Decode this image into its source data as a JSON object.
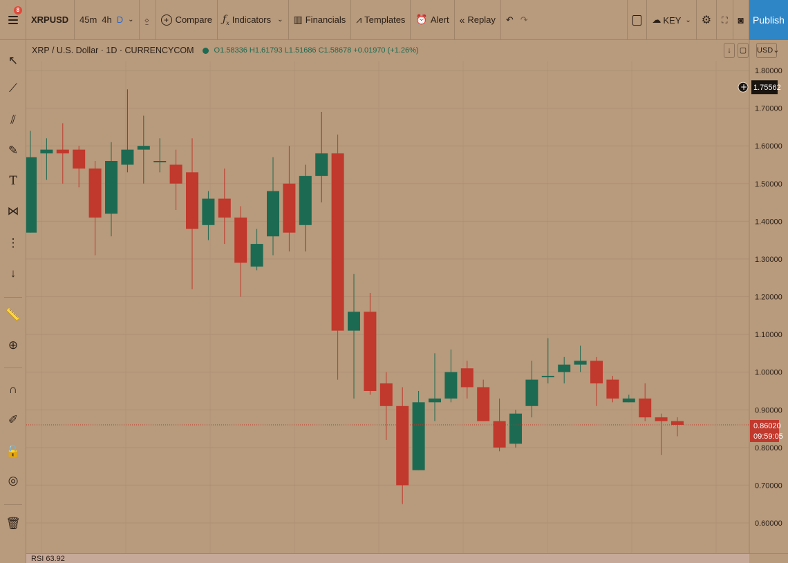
{
  "toolbar": {
    "notif_count": "8",
    "symbol": "XRPUSD",
    "intervals": [
      "45m",
      "4h",
      "D"
    ],
    "compare": "Compare",
    "indicators": "Indicators",
    "financials": "Financials",
    "templates": "Templates",
    "alert": "Alert",
    "replay": "Replay",
    "layout_name": "KEY",
    "publish": "Publish"
  },
  "legend": {
    "title": "XRP / U.S. Dollar · 1D · CURRENCYCOM",
    "ohlc": "O1.58336 H1.61793 L1.51686 C1.58678 +0.01970 (+1.26%)"
  },
  "currency": "USD",
  "rsi_label": "RSI  63.92",
  "colors": {
    "up": "#1d6a52",
    "down": "#c1382c",
    "background": "#b89a7c"
  },
  "chart_data": {
    "type": "candlestick",
    "ylim": [
      0.55,
      1.82
    ],
    "yticks": [
      "1.80000",
      "1.70000",
      "1.60000",
      "1.50000",
      "1.40000",
      "1.30000",
      "1.20000",
      "1.10000",
      "1.00000",
      "0.90000",
      "0.80000",
      "0.70000",
      "0.60000"
    ],
    "crosshair_price": "1.75562",
    "last_price": "0.86020",
    "countdown": "09:59:05",
    "candles": [
      {
        "o": 1.37,
        "h": 1.64,
        "l": 1.37,
        "c": 1.57
      },
      {
        "o": 1.58,
        "h": 1.62,
        "l": 1.51,
        "c": 1.59
      },
      {
        "o": 1.59,
        "h": 1.66,
        "l": 1.5,
        "c": 1.58
      },
      {
        "o": 1.59,
        "h": 1.6,
        "l": 1.49,
        "c": 1.54
      },
      {
        "o": 1.54,
        "h": 1.56,
        "l": 1.31,
        "c": 1.41
      },
      {
        "o": 1.42,
        "h": 1.61,
        "l": 1.36,
        "c": 1.56
      },
      {
        "o": 1.55,
        "h": 1.75,
        "l": 1.53,
        "c": 1.59
      },
      {
        "o": 1.59,
        "h": 1.68,
        "l": 1.5,
        "c": 1.6
      },
      {
        "o": 1.56,
        "h": 1.62,
        "l": 1.53,
        "c": 1.56
      },
      {
        "o": 1.55,
        "h": 1.59,
        "l": 1.43,
        "c": 1.5
      },
      {
        "o": 1.53,
        "h": 1.62,
        "l": 1.22,
        "c": 1.38
      },
      {
        "o": 1.39,
        "h": 1.48,
        "l": 1.35,
        "c": 1.46
      },
      {
        "o": 1.46,
        "h": 1.54,
        "l": 1.34,
        "c": 1.41
      },
      {
        "o": 1.41,
        "h": 1.44,
        "l": 1.2,
        "c": 1.29
      },
      {
        "o": 1.28,
        "h": 1.38,
        "l": 1.27,
        "c": 1.34
      },
      {
        "o": 1.36,
        "h": 1.57,
        "l": 1.31,
        "c": 1.48
      },
      {
        "o": 1.5,
        "h": 1.6,
        "l": 1.32,
        "c": 1.37
      },
      {
        "o": 1.39,
        "h": 1.55,
        "l": 1.32,
        "c": 1.52
      },
      {
        "o": 1.52,
        "h": 1.69,
        "l": 1.45,
        "c": 1.58
      },
      {
        "o": 1.58,
        "h": 1.63,
        "l": 0.98,
        "c": 1.11
      },
      {
        "o": 1.11,
        "h": 1.26,
        "l": 0.93,
        "c": 1.16
      },
      {
        "o": 1.16,
        "h": 1.21,
        "l": 0.94,
        "c": 0.95
      },
      {
        "o": 0.97,
        "h": 1.0,
        "l": 0.82,
        "c": 0.91
      },
      {
        "o": 0.91,
        "h": 0.96,
        "l": 0.65,
        "c": 0.7
      },
      {
        "o": 0.74,
        "h": 0.95,
        "l": 0.74,
        "c": 0.92
      },
      {
        "o": 0.92,
        "h": 1.05,
        "l": 0.87,
        "c": 0.93
      },
      {
        "o": 0.93,
        "h": 1.06,
        "l": 0.92,
        "c": 1.0
      },
      {
        "o": 1.01,
        "h": 1.03,
        "l": 0.93,
        "c": 0.96
      },
      {
        "o": 0.96,
        "h": 0.98,
        "l": 0.87,
        "c": 0.87
      },
      {
        "o": 0.87,
        "h": 0.93,
        "l": 0.79,
        "c": 0.8
      },
      {
        "o": 0.81,
        "h": 0.9,
        "l": 0.8,
        "c": 0.89
      },
      {
        "o": 0.91,
        "h": 1.03,
        "l": 0.88,
        "c": 0.98
      },
      {
        "o": 0.99,
        "h": 1.09,
        "l": 0.97,
        "c": 0.99
      },
      {
        "o": 1.0,
        "h": 1.04,
        "l": 0.97,
        "c": 1.02
      },
      {
        "o": 1.02,
        "h": 1.07,
        "l": 1.0,
        "c": 1.03
      },
      {
        "o": 1.03,
        "h": 1.04,
        "l": 0.91,
        "c": 0.97
      },
      {
        "o": 0.98,
        "h": 0.99,
        "l": 0.92,
        "c": 0.93
      },
      {
        "o": 0.92,
        "h": 0.94,
        "l": 0.92,
        "c": 0.93
      },
      {
        "o": 0.93,
        "h": 0.97,
        "l": 0.87,
        "c": 0.88
      },
      {
        "o": 0.88,
        "h": 0.89,
        "l": 0.78,
        "c": 0.87
      },
      {
        "o": 0.87,
        "h": 0.88,
        "l": 0.83,
        "c": 0.86
      }
    ]
  }
}
